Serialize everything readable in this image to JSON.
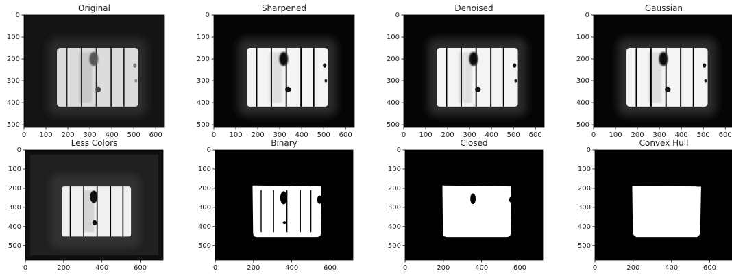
{
  "chart_data": [
    {
      "type": "image",
      "title": "Original",
      "xlim": [
        0,
        640
      ],
      "ylim": [
        512,
        0
      ],
      "xticks": [
        0,
        100,
        200,
        300,
        400,
        500,
        600
      ],
      "yticks": [
        0,
        100,
        200,
        300,
        400,
        500
      ]
    },
    {
      "type": "image",
      "title": "Sharpened",
      "xlim": [
        0,
        640
      ],
      "ylim": [
        512,
        0
      ],
      "xticks": [
        0,
        100,
        200,
        300,
        400,
        500,
        600
      ],
      "yticks": [
        0,
        100,
        200,
        300,
        400,
        500
      ]
    },
    {
      "type": "image",
      "title": "Denoised",
      "xlim": [
        0,
        640
      ],
      "ylim": [
        512,
        0
      ],
      "xticks": [
        0,
        100,
        200,
        300,
        400,
        500,
        600
      ],
      "yticks": [
        0,
        100,
        200,
        300,
        400,
        500
      ]
    },
    {
      "type": "image",
      "title": "Gaussian",
      "xlim": [
        0,
        640
      ],
      "ylim": [
        512,
        0
      ],
      "xticks": [
        0,
        100,
        200,
        300,
        400,
        500,
        600
      ],
      "yticks": [
        0,
        100,
        200,
        300,
        400,
        500
      ]
    },
    {
      "type": "image",
      "title": "Less Colors",
      "xlim": [
        0,
        720
      ],
      "ylim": [
        576,
        0
      ],
      "xticks": [
        0,
        200,
        400,
        600
      ],
      "yticks": [
        0,
        100,
        200,
        300,
        400,
        500
      ]
    },
    {
      "type": "image",
      "title": "Binary",
      "xlim": [
        0,
        720
      ],
      "ylim": [
        576,
        0
      ],
      "xticks": [
        0,
        200,
        400,
        600
      ],
      "yticks": [
        0,
        100,
        200,
        300,
        400,
        500
      ]
    },
    {
      "type": "image",
      "title": "Closed",
      "xlim": [
        0,
        720
      ],
      "ylim": [
        576,
        0
      ],
      "xticks": [
        0,
        200,
        400,
        600
      ],
      "yticks": [
        0,
        100,
        200,
        300,
        400,
        500
      ]
    },
    {
      "type": "image",
      "title": "Convex Hull",
      "xlim": [
        0,
        720
      ],
      "ylim": [
        576,
        0
      ],
      "xticks": [
        0,
        200,
        400,
        600
      ],
      "yticks": [
        0,
        100,
        200,
        300,
        400,
        500
      ]
    }
  ]
}
